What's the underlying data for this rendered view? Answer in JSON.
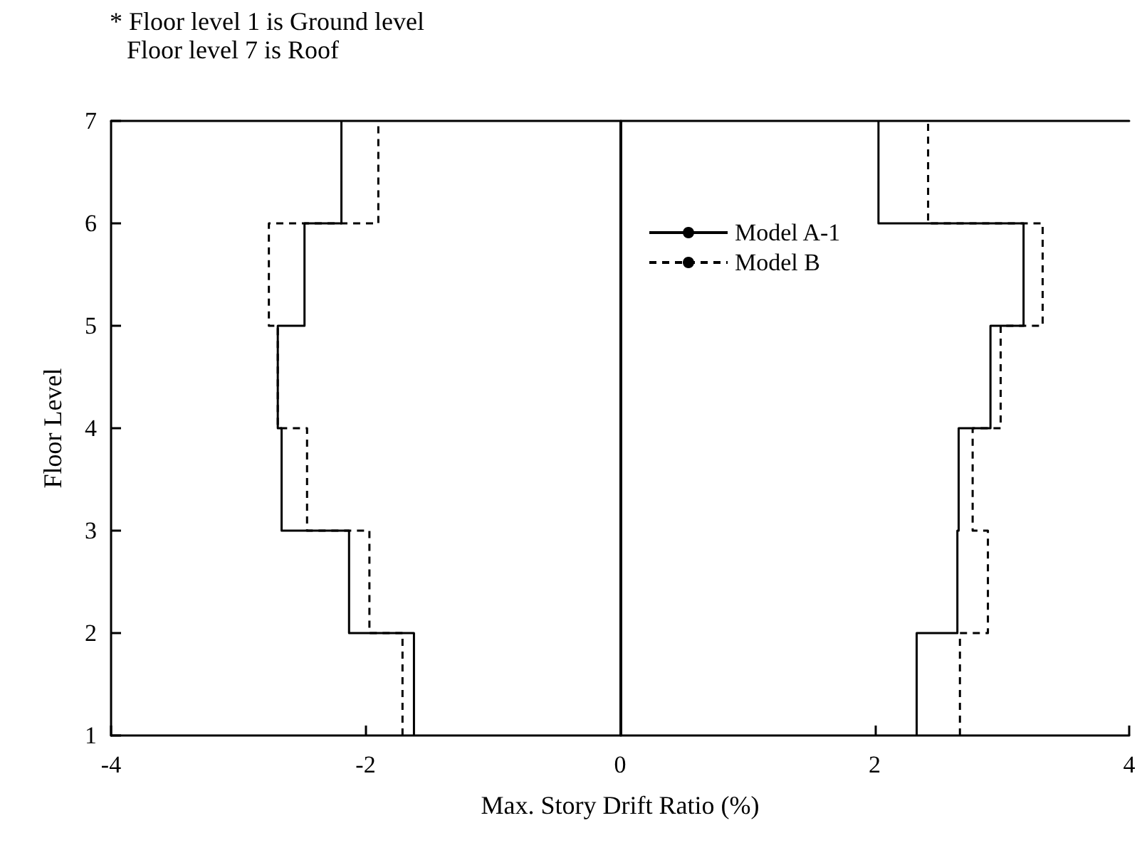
{
  "chart_data": {
    "type": "line",
    "xlabel": "Max. Story Drift Ratio (%)",
    "ylabel": "Floor Level",
    "annotations": [
      "* Floor level 1 is Ground level",
      "Floor level 7 is Roof"
    ],
    "xlim": [
      -4,
      4
    ],
    "xticks": [
      -4,
      -2,
      0,
      2,
      4
    ],
    "ylim": [
      1,
      7
    ],
    "yticks": [
      1,
      2,
      3,
      4,
      5,
      6,
      7
    ],
    "grid": false,
    "legend": "top right",
    "marker": "none",
    "ref_lines": [
      {
        "axis": "x",
        "value": 0,
        "color": "#000000"
      }
    ],
    "series": [
      {
        "name": "Model A-1",
        "color": "#000000",
        "line_style": "solid",
        "x": [
          -1.62,
          -1.62,
          -2.13,
          -2.13,
          -2.66,
          -2.66,
          -2.69,
          -2.69,
          -2.48,
          -2.48,
          -2.19,
          -2.19
        ],
        "values": [
          1,
          2,
          2,
          3,
          3,
          4,
          4,
          5,
          5,
          6,
          6,
          7
        ]
      },
      {
        "color": "#000000",
        "line_style": "solid",
        "x": [
          2.33,
          2.33,
          2.65,
          2.65,
          2.66,
          2.66,
          2.91,
          2.91,
          3.17,
          3.17,
          2.03,
          2.03
        ],
        "values": [
          1,
          2,
          2,
          3,
          3,
          4,
          4,
          5,
          5,
          6,
          6,
          7
        ]
      },
      {
        "name": "Model B",
        "color": "#000000",
        "line_style": "dashed",
        "x": [
          -1.71,
          -1.71,
          -1.97,
          -1.97,
          -2.46,
          -2.46,
          -2.69,
          -2.69,
          -2.76,
          -2.76,
          -1.9,
          -1.9
        ],
        "values": [
          1,
          2,
          2,
          3,
          3,
          4,
          4,
          5,
          5,
          6,
          6,
          7
        ]
      },
      {
        "color": "#000000",
        "line_style": "dashed",
        "x": [
          2.67,
          2.67,
          2.89,
          2.89,
          2.77,
          2.77,
          2.99,
          2.99,
          3.32,
          3.32,
          2.42,
          2.42
        ],
        "values": [
          1,
          2,
          2,
          3,
          3,
          4,
          4,
          5,
          5,
          6,
          6,
          7
        ]
      }
    ]
  }
}
